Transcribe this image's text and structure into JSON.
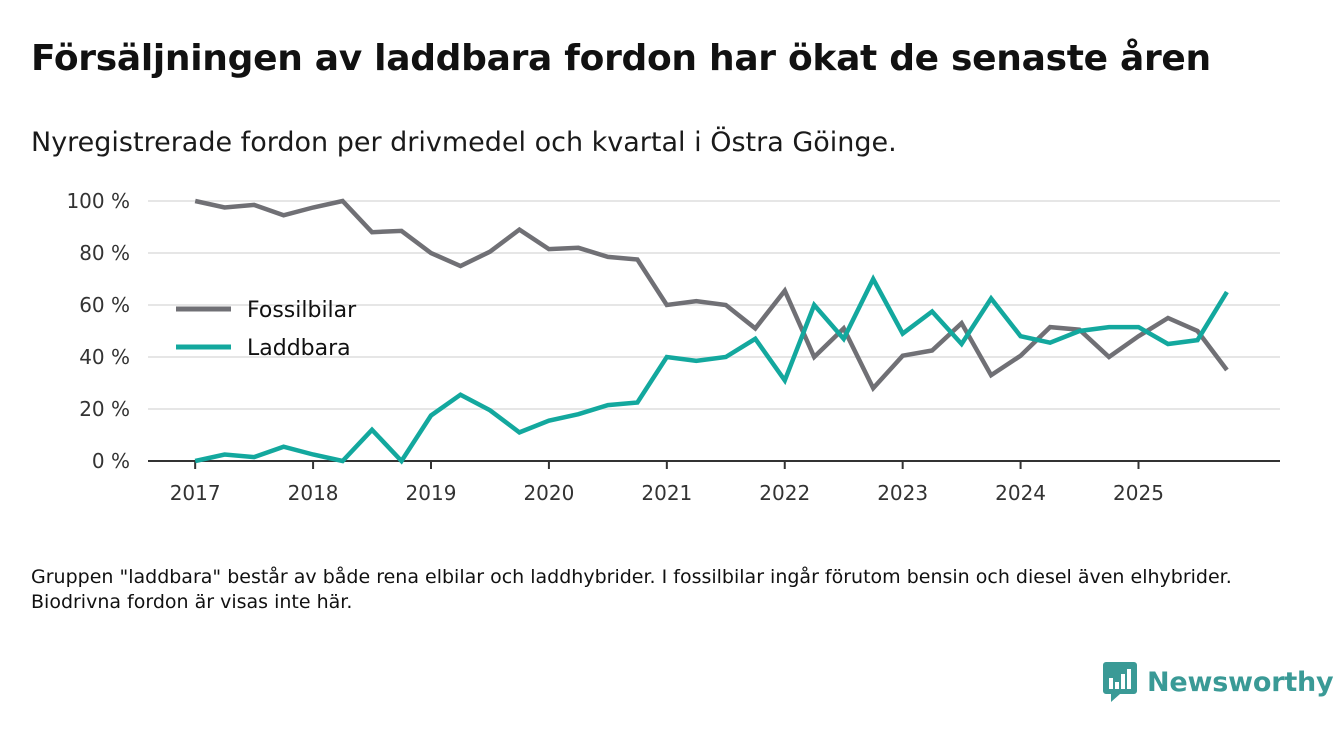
{
  "title": "Försäljningen av laddbara fordon har ökat de senaste åren",
  "subtitle": "Nyregistrerade fordon per drivmedel och kvartal i Östra Göinge.",
  "footnote": "Gruppen \"laddbara\" består av både rena elbilar och laddhybrider. I fossilbilar ingår förutom bensin och diesel även elhybrider. Biodrivna fordon är visas inte här.",
  "logo": {
    "text": "Newsworthy",
    "color": "#3a9a96"
  },
  "chart_data": {
    "type": "line",
    "title": "Nyregistrerade fordon per drivmedel och kvartal i Östra Göinge.",
    "xlabel": "",
    "ylabel": "",
    "ylim": [
      0,
      100
    ],
    "y_ticks": [
      0,
      20,
      40,
      60,
      80,
      100
    ],
    "y_tick_labels": [
      "0 %",
      "20 %",
      "40 %",
      "60 %",
      "80 %",
      "100 %"
    ],
    "x_tick_labels": [
      "2017",
      "2018",
      "2019",
      "2020",
      "2021",
      "2022",
      "2023",
      "2024",
      "2025"
    ],
    "x_tick_positions": [
      2017,
      2018,
      2019,
      2020,
      2021,
      2022,
      2023,
      2024,
      2025
    ],
    "xlim": [
      2016.6,
      2026.2
    ],
    "x": [
      2017.0,
      2017.25,
      2017.5,
      2017.75,
      2018.0,
      2018.25,
      2018.5,
      2018.75,
      2019.0,
      2019.25,
      2019.5,
      2019.75,
      2020.0,
      2020.25,
      2020.5,
      2020.75,
      2021.0,
      2021.25,
      2021.5,
      2021.75,
      2022.0,
      2022.25,
      2022.5,
      2022.75,
      2023.0,
      2023.25,
      2023.5,
      2023.75,
      2024.0,
      2024.25,
      2024.5,
      2024.75,
      2025.0,
      2025.25,
      2025.5,
      2025.75
    ],
    "legend_position": "middle-left",
    "grid": true,
    "series": [
      {
        "name": "Fossilbilar",
        "color": "#707075",
        "values": [
          100,
          97.5,
          98.5,
          94.5,
          97.5,
          100,
          88,
          88.5,
          80,
          75,
          80.5,
          89,
          81.5,
          82,
          78.5,
          77.5,
          60,
          61.5,
          60,
          51,
          65.5,
          40,
          51,
          28,
          40.5,
          42.5,
          53,
          33,
          40.5,
          51.5,
          50.5,
          40,
          48,
          55,
          50,
          35
        ]
      },
      {
        "name": "Laddbara",
        "color": "#13a89e",
        "values": [
          0,
          2.5,
          1.5,
          5.5,
          2.5,
          0,
          12,
          0,
          17.5,
          25.5,
          19.5,
          11,
          15.5,
          18,
          21.5,
          22.5,
          40,
          38.5,
          40,
          47,
          31,
          60,
          47,
          70,
          49,
          57.5,
          45,
          62.5,
          48,
          45.5,
          50,
          51.5,
          51.5,
          45,
          46.5,
          65
        ]
      }
    ]
  }
}
